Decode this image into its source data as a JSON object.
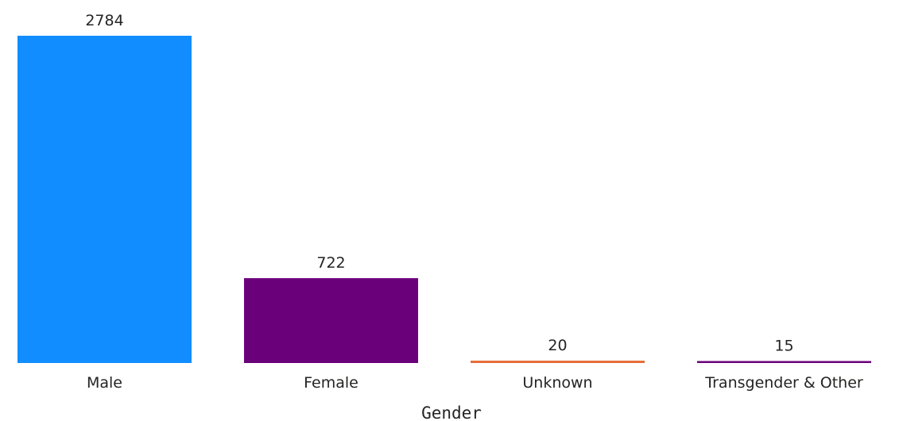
{
  "chart_data": {
    "type": "bar",
    "categories": [
      "Male",
      "Female",
      "Unknown",
      "Transgender & Other"
    ],
    "values": [
      2784,
      722,
      20,
      15
    ],
    "data_labels": [
      "2784",
      "722",
      "20",
      "15"
    ],
    "colors": [
      "#118DFF",
      "#6B007B",
      "#E66C37",
      "#6B007B"
    ],
    "xlabel": "Gender",
    "ylabel": "",
    "title": "",
    "ylim": [
      0,
      2784
    ],
    "grid": false,
    "legend": "none"
  }
}
